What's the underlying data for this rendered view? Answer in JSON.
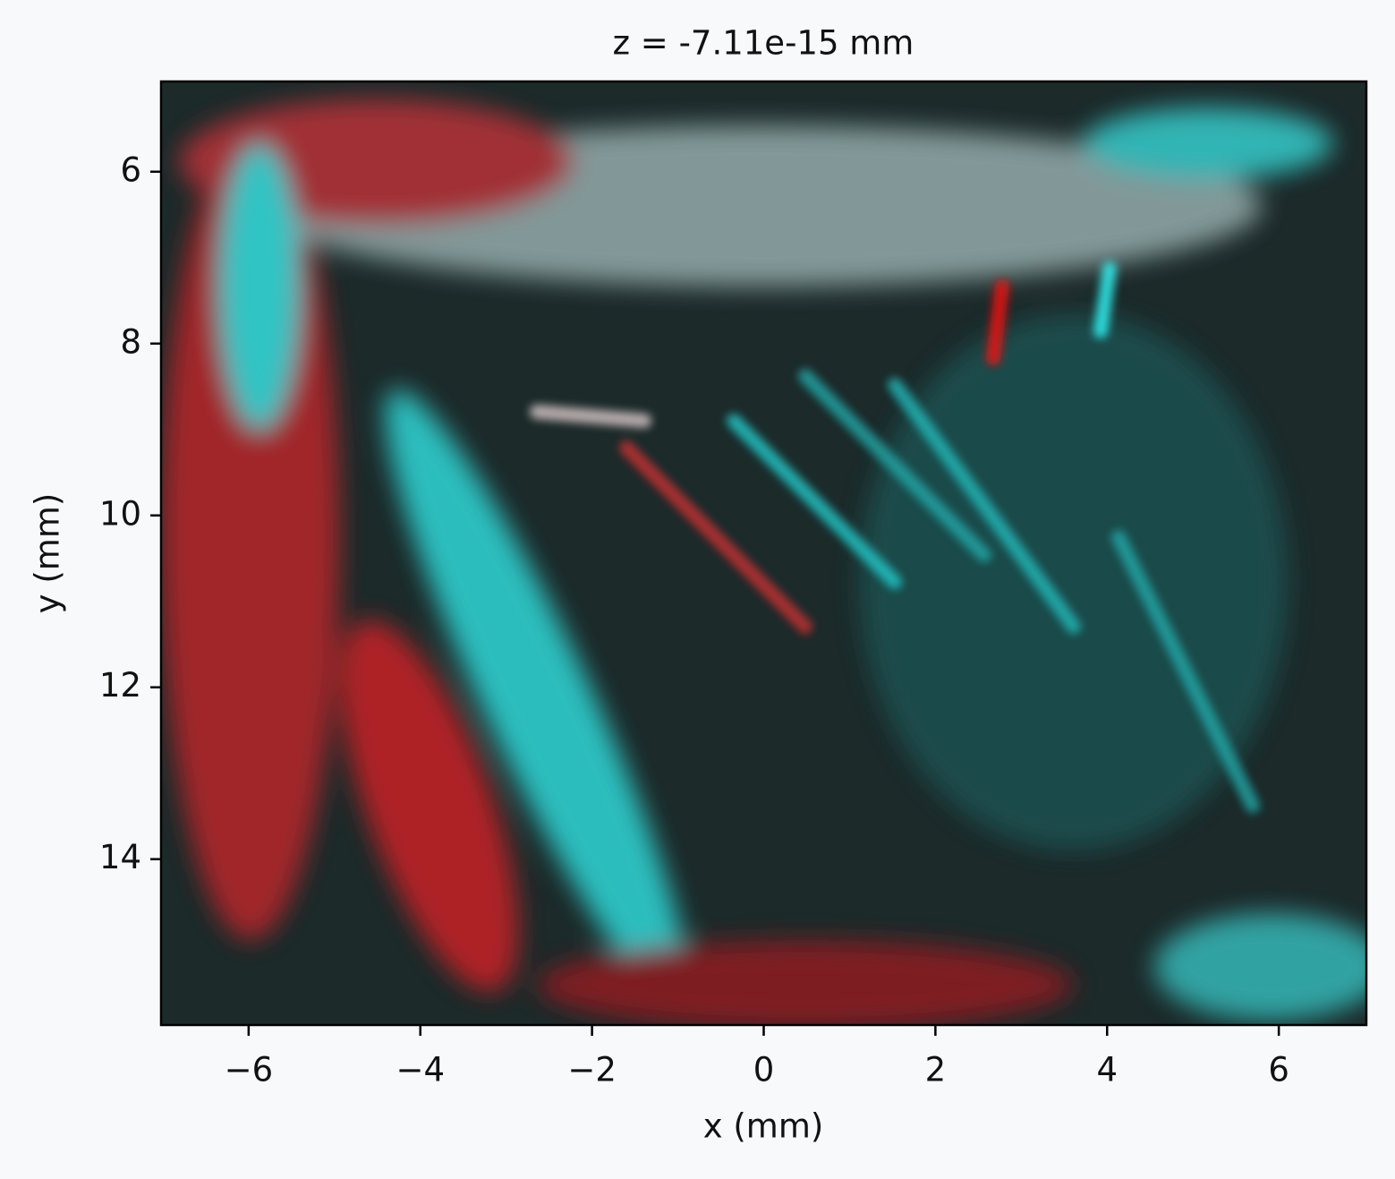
{
  "chart_data": {
    "type": "image",
    "title": "z = -7.11e-15 mm",
    "x_label": "x (mm)",
    "y_label": "y (mm)",
    "xlim": [
      -7.02,
      7.02
    ],
    "ylim": [
      15.93,
      4.95
    ],
    "xticks": [
      {
        "value": -6,
        "label": "−6"
      },
      {
        "value": -4,
        "label": "−4"
      },
      {
        "value": -2,
        "label": "−2"
      },
      0,
      2,
      4,
      6
    ],
    "yticks": [
      6,
      8,
      10,
      12,
      14
    ]
  }
}
